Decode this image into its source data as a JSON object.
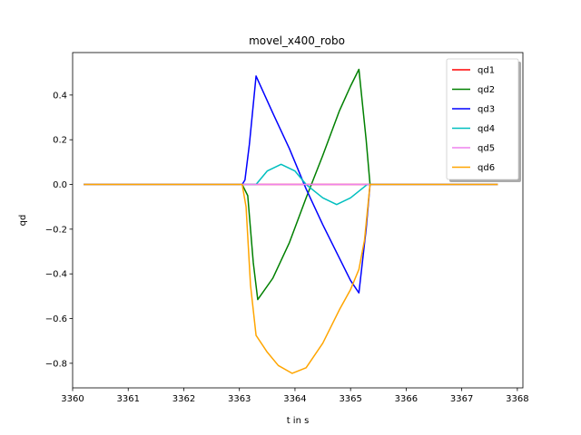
{
  "chart_data": {
    "type": "line",
    "title": "movel_x400_robo",
    "xlabel": "t in s",
    "ylabel": "qd",
    "xlim": [
      3360.0,
      3368.1
    ],
    "ylim": [
      -0.91,
      0.59
    ],
    "xticks": [
      3360,
      3361,
      3362,
      3363,
      3364,
      3365,
      3366,
      3367,
      3368
    ],
    "yticks": [
      -0.8,
      -0.6,
      -0.4,
      -0.2,
      0.0,
      0.2,
      0.4
    ],
    "ytick_labels": [
      "−0.8",
      "−0.6",
      "−0.4",
      "−0.2",
      "0.0",
      "0.2",
      "0.4"
    ],
    "grid": false,
    "legend_position": "top-right",
    "series": [
      {
        "name": "qd1",
        "color": "#ff0000",
        "points": [
          [
            3360.2,
            0.0
          ],
          [
            3363.1,
            0.0
          ],
          [
            3365.35,
            0.0
          ],
          [
            3367.65,
            0.0
          ]
        ]
      },
      {
        "name": "qd2",
        "color": "#008000",
        "points": [
          [
            3360.2,
            0.0
          ],
          [
            3363.05,
            0.0
          ],
          [
            3363.15,
            -0.05
          ],
          [
            3363.25,
            -0.35
          ],
          [
            3363.33,
            -0.515
          ],
          [
            3363.6,
            -0.42
          ],
          [
            3363.9,
            -0.26
          ],
          [
            3364.2,
            -0.06
          ],
          [
            3364.5,
            0.13
          ],
          [
            3364.8,
            0.33
          ],
          [
            3365.0,
            0.44
          ],
          [
            3365.15,
            0.515
          ],
          [
            3365.28,
            0.2
          ],
          [
            3365.35,
            0.0
          ],
          [
            3367.65,
            0.0
          ]
        ]
      },
      {
        "name": "qd3",
        "color": "#0000ff",
        "points": [
          [
            3360.2,
            0.0
          ],
          [
            3363.05,
            0.0
          ],
          [
            3363.1,
            0.02
          ],
          [
            3363.18,
            0.18
          ],
          [
            3363.3,
            0.485
          ],
          [
            3363.6,
            0.32
          ],
          [
            3363.9,
            0.16
          ],
          [
            3364.2,
            -0.02
          ],
          [
            3364.5,
            -0.18
          ],
          [
            3364.8,
            -0.33
          ],
          [
            3365.0,
            -0.43
          ],
          [
            3365.15,
            -0.485
          ],
          [
            3365.28,
            -0.2
          ],
          [
            3365.35,
            0.0
          ],
          [
            3367.65,
            0.0
          ]
        ]
      },
      {
        "name": "qd4",
        "color": "#00bfbf",
        "points": [
          [
            3360.2,
            0.0
          ],
          [
            3363.3,
            0.0
          ],
          [
            3363.5,
            0.06
          ],
          [
            3363.75,
            0.09
          ],
          [
            3364.0,
            0.06
          ],
          [
            3364.2,
            0.0
          ],
          [
            3364.5,
            -0.06
          ],
          [
            3364.75,
            -0.09
          ],
          [
            3365.0,
            -0.06
          ],
          [
            3365.3,
            0.0
          ],
          [
            3367.65,
            0.0
          ]
        ]
      },
      {
        "name": "qd5",
        "color": "#ee82ee",
        "points": [
          [
            3360.2,
            0.0
          ],
          [
            3367.65,
            0.0
          ]
        ]
      },
      {
        "name": "qd6",
        "color": "#ffa500",
        "points": [
          [
            3360.2,
            0.0
          ],
          [
            3363.05,
            0.0
          ],
          [
            3363.12,
            -0.1
          ],
          [
            3363.2,
            -0.45
          ],
          [
            3363.3,
            -0.675
          ],
          [
            3363.5,
            -0.75
          ],
          [
            3363.7,
            -0.81
          ],
          [
            3363.95,
            -0.845
          ],
          [
            3364.2,
            -0.82
          ],
          [
            3364.5,
            -0.71
          ],
          [
            3364.8,
            -0.56
          ],
          [
            3365.0,
            -0.47
          ],
          [
            3365.15,
            -0.38
          ],
          [
            3365.25,
            -0.25
          ],
          [
            3365.35,
            0.0
          ],
          [
            3367.65,
            0.0
          ]
        ]
      }
    ]
  }
}
